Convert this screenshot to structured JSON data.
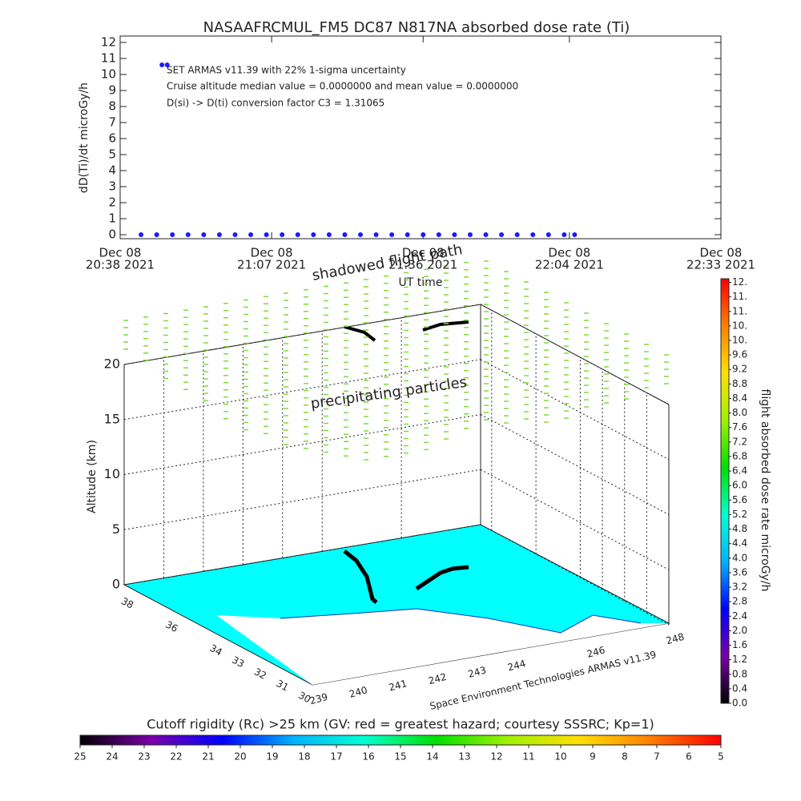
{
  "chart_data": [
    {
      "type": "scatter",
      "title": "NASAAFRCMUL_FM5 DC87 N817NA absorbed dose rate (Ti)",
      "ylabel": "dD(Ti)/dt microGy/h",
      "xlabel": "UT time",
      "annotations": [
        "SET ARMAS v11.39 with 22% 1-sigma uncertainty",
        "Cruise altitude median value = 0.0000000 and mean value = 0.0000000",
        "D(si) -> D(ti) conversion factor C3 = 1.31065"
      ],
      "color": "#1a1aff",
      "x": [
        "2021-12-08T20:42",
        "2021-12-08T20:45",
        "2021-12-08T20:46",
        "2021-12-08T20:47",
        "2021-12-08T20:48",
        "2021-12-08T20:51",
        "2021-12-08T20:54",
        "2021-12-08T20:57",
        "2021-12-08T21:00",
        "2021-12-08T21:03",
        "2021-12-08T21:06",
        "2021-12-08T21:09",
        "2021-12-08T21:12",
        "2021-12-08T21:15",
        "2021-12-08T21:18",
        "2021-12-08T21:21",
        "2021-12-08T21:24",
        "2021-12-08T21:27",
        "2021-12-08T21:30",
        "2021-12-08T21:33",
        "2021-12-08T21:36",
        "2021-12-08T21:39",
        "2021-12-08T21:42",
        "2021-12-08T21:45",
        "2021-12-08T21:48",
        "2021-12-08T21:51",
        "2021-12-08T21:54",
        "2021-12-08T21:57",
        "2021-12-08T22:00",
        "2021-12-08T22:03",
        "2021-12-08T22:05"
      ],
      "values": [
        0,
        0,
        10.6,
        10.6,
        0,
        0,
        0,
        0,
        0,
        0,
        0,
        0,
        0,
        0,
        0,
        0,
        0,
        0,
        0,
        0,
        0,
        0,
        0,
        0,
        0,
        0,
        0,
        0,
        0,
        0,
        0
      ],
      "xlim": [
        "2021-12-08T20:38",
        "2021-12-08T22:33"
      ],
      "xticks": [
        {
          "value": "2021-12-08T20:38",
          "label": [
            "Dec 08",
            "20:38 2021"
          ]
        },
        {
          "value": "2021-12-08T21:07",
          "label": [
            "Dec 08",
            "21:07 2021"
          ]
        },
        {
          "value": "2021-12-08T21:36",
          "label": [
            "Dec 08",
            "21:36 2021"
          ]
        },
        {
          "value": "2021-12-08T22:04",
          "label": [
            "Dec 08",
            "22:04 2021"
          ]
        },
        {
          "value": "2021-12-08T22:33",
          "label": [
            "Dec 08",
            "22:33 2021"
          ]
        }
      ],
      "ylim": [
        -0.25,
        12.4
      ],
      "yticks": [
        0,
        1,
        2,
        3,
        4,
        5,
        6,
        7,
        8,
        9,
        10,
        11,
        12
      ]
    },
    {
      "type": "surface3d",
      "zlabel": "Altitude (km)",
      "annotations": [
        "shadowed flight path",
        "precipitating particles"
      ],
      "caption": "Space Environment Technologies ARMAS v11.39",
      "xlim": [
        239,
        248
      ],
      "xticks": [
        239,
        240,
        241,
        242,
        243,
        244,
        246,
        248
      ],
      "ylim": [
        30,
        38.5
      ],
      "yticks": [
        30,
        31,
        32,
        33,
        34,
        36,
        38
      ],
      "zlim": [
        0,
        20
      ],
      "zticks": [
        0,
        5,
        10,
        15,
        20
      ],
      "colorbar": {
        "label": "flight absorbed dose rate microGy/h",
        "lim": [
          0,
          11.7
        ],
        "colors": [
          "#000000",
          "#7a00a8",
          "#0000ff",
          "#00b3ff",
          "#00ffd0",
          "#00e000",
          "#a0f000",
          "#ffe000",
          "#ff8000",
          "#ff0000"
        ],
        "ticks": [
          {
            "value": 0,
            "label": "0.0"
          },
          0.4,
          0.8,
          1.2,
          1.6,
          {
            "value": 2,
            "label": "2.0"
          },
          2.4,
          2.8,
          3.2,
          3.6,
          {
            "value": 4,
            "label": "4.0"
          },
          4.4,
          4.8,
          5.2,
          5.6,
          {
            "value": 6,
            "label": "6.0"
          },
          6.4,
          6.8,
          7.2,
          7.6,
          {
            "value": 8,
            "label": "8.0"
          },
          8.4,
          8.8,
          9.2,
          9.6,
          {
            "value": 10,
            "label": "10."
          },
          {
            "value": 10.4,
            "label": "10."
          },
          {
            "value": 10.8,
            "label": "11."
          },
          {
            "value": 11.2,
            "label": "11."
          },
          {
            "value": 11.6,
            "label": "12."
          }
        ]
      },
      "colorbar2": {
        "label": "Cutoff rigidity (Rc) >25 km (GV: red = greatest hazard; courtesy SSSRC; Kp=1)",
        "lim": [
          25,
          5
        ],
        "colors": [
          "#000000",
          "#7a00a8",
          "#0000ff",
          "#00b3ff",
          "#00ffd0",
          "#00e000",
          "#a0f000",
          "#ffe000",
          "#ff8000",
          "#ff0000"
        ],
        "ticks": [
          25,
          24,
          23,
          22,
          21,
          20,
          19,
          18,
          17,
          16,
          15,
          14,
          13,
          12,
          11,
          10,
          9,
          8,
          7,
          6,
          5
        ]
      }
    }
  ]
}
